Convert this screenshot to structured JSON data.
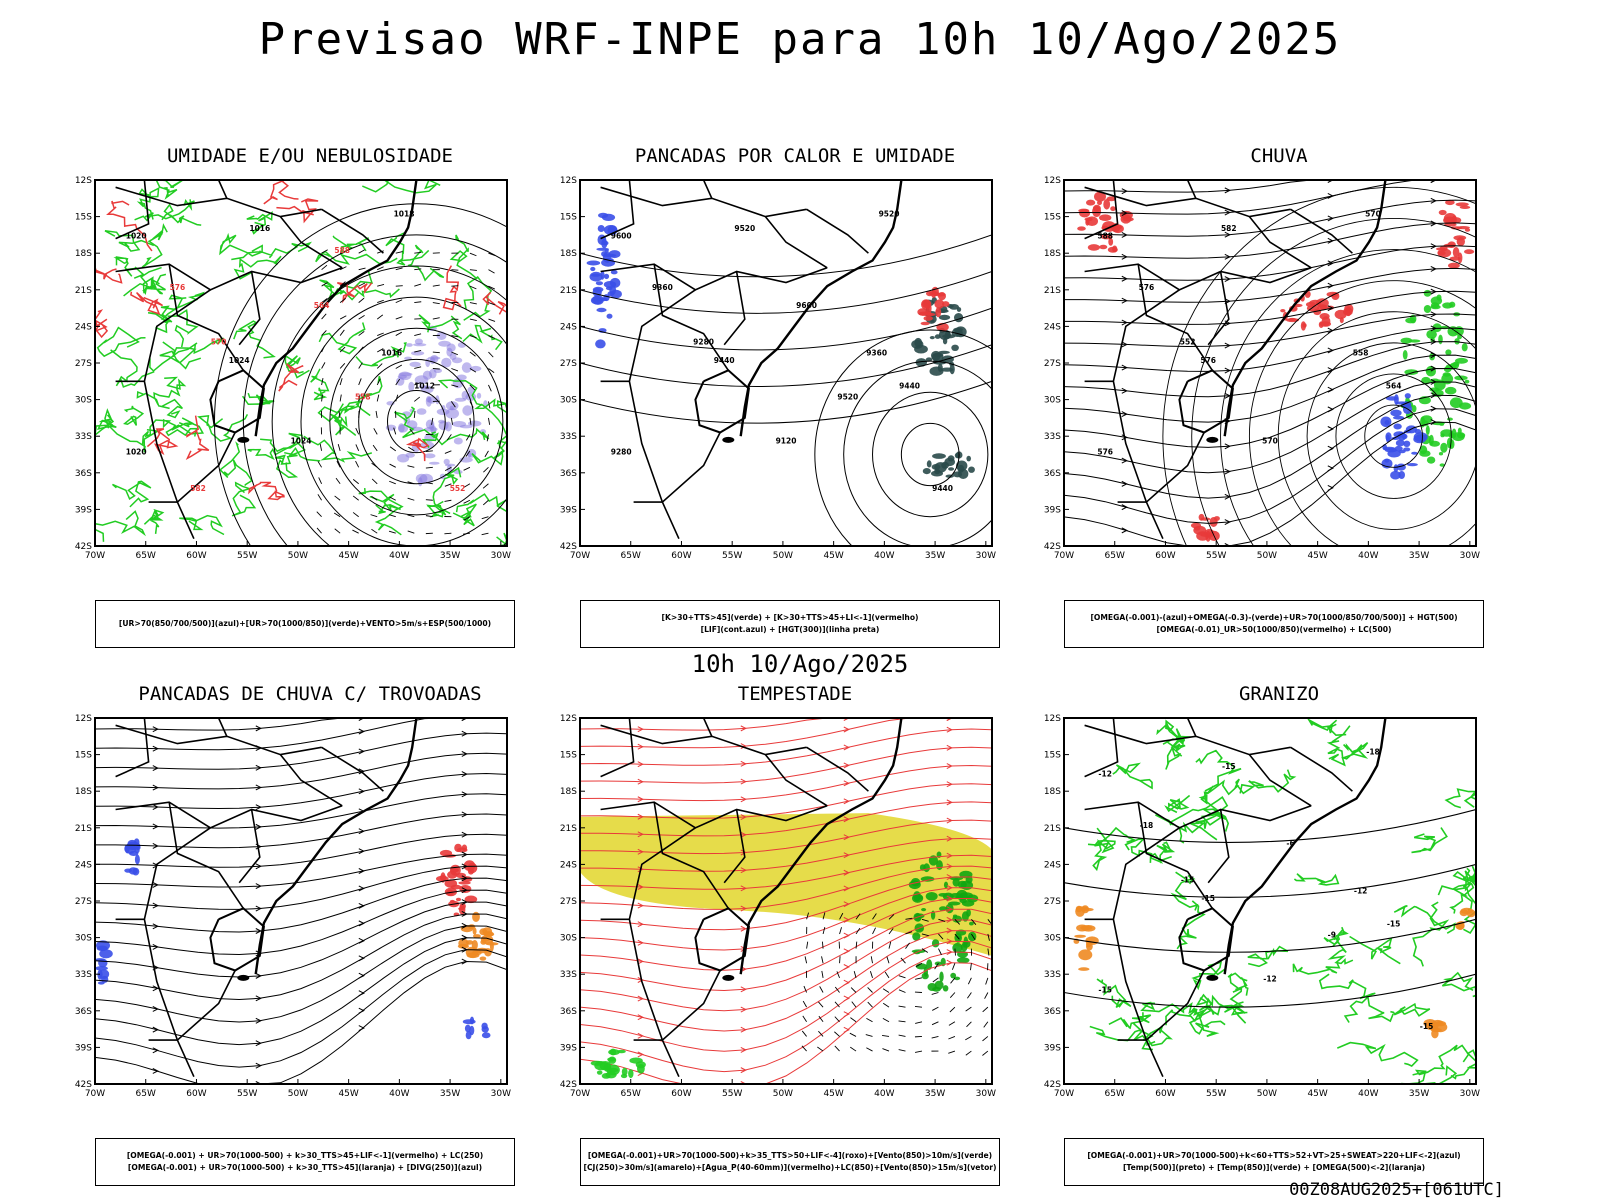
{
  "title": "Previsao WRF-INPE  para 10h 10/Ago/2025",
  "mid_time": "10h 10/Ago/2025",
  "run_stamp": "00Z08AUG2025+[061UTC]",
  "lat_labels": [
    "12S",
    "15S",
    "18S",
    "21S",
    "24S",
    "27S",
    "30S",
    "33S",
    "36S",
    "39S",
    "42S"
  ],
  "lon_labels": [
    "70W",
    "65W",
    "60W",
    "55W",
    "50W",
    "45W",
    "40W",
    "35W",
    "30W"
  ],
  "colors": {
    "blue": "#3a4fe8",
    "green": "#22cc22",
    "red": "#e83a3a",
    "orange": "#ee8a22",
    "yellow": "#e3d836",
    "teal": "#2a4a4a",
    "purple": "#8a7ee0"
  },
  "panels": [
    {
      "title": "UMIDADE E/OU NEBULOSIDADE",
      "legend": [
        "[UR>70(850/700/500)](azul)+[UR>70(1000/850)](verde)+VENTO>5m/s+ESP(500/1000)"
      ],
      "labels": [
        "1020",
        "1016",
        "1024",
        "1018",
        "1012",
        "1016",
        "1020",
        "1024",
        "576",
        "570",
        "564",
        "558",
        "552",
        "582",
        "588"
      ]
    },
    {
      "title": "PANCADAS POR CALOR E UMIDADE",
      "legend": [
        "[K>30+TTS>45](verde) + [K>30+TTS>45+LI<-1](vermelho)",
        "[LIF](cont.azul) + [HGT(300)](linha preta)"
      ],
      "labels": [
        "9600",
        "9520",
        "9440",
        "9520",
        "9440",
        "9360",
        "9280",
        "9120",
        "9360",
        "9280",
        "9600",
        "9520",
        "9440"
      ]
    },
    {
      "title": "CHUVA",
      "legend": [
        "[OMEGA(-0.001)-(azul)+OMEGA(-0.3)-(verde)+UR>70(1000/850/700/500)] + HGT(500)",
        "[OMEGA(-0.01)_UR>50(1000/850)(vermelho) + LC(500)"
      ],
      "labels": [
        "588",
        "582",
        "576",
        "570",
        "564",
        "558",
        "576",
        "570",
        "576",
        "552"
      ]
    },
    {
      "title": "PANCADAS DE CHUVA C/ TROVOADAS",
      "legend": [
        "[OMEGA(-0.001) + UR>70(1000-500) + k>30_TTS>45+LIF<-1](vermelho) + LC(250)",
        "[OMEGA(-0.001) + UR>70(1000-500) + k>30_TTS>45](laranja) + [DIVG(250)](azul)"
      ],
      "labels": []
    },
    {
      "title": "TEMPESTADE",
      "legend": [
        "[OMEGA(-0.001)+UR>70(1000-500)+k>35_TTS>50+LIF<-4](roxo)+[Vento(850)>10m/s](verde)",
        "[CJ(250)>30m/s](amarelo)+[Agua_P(40-60mm)](vermelho)+LC(850)+[Vento(850)>15m/s](vetor)"
      ],
      "labels": []
    },
    {
      "title": "GRANIZO",
      "legend": [
        "[OMEGA(-0.001)+UR>70(1000-500)+k<60+TTS>52+VT>25+SWEAT>220+LIF<-2](azul)",
        "[Temp(500)](preto) + [Temp(850)](verde) + [OMEGA(500)<-2](laranja)"
      ],
      "labels": [
        "-12",
        "-15",
        "-15",
        "-18",
        "-15",
        "-12",
        "-15",
        "-12",
        "-18",
        "-15",
        "-6",
        "-9",
        "-15"
      ]
    }
  ]
}
